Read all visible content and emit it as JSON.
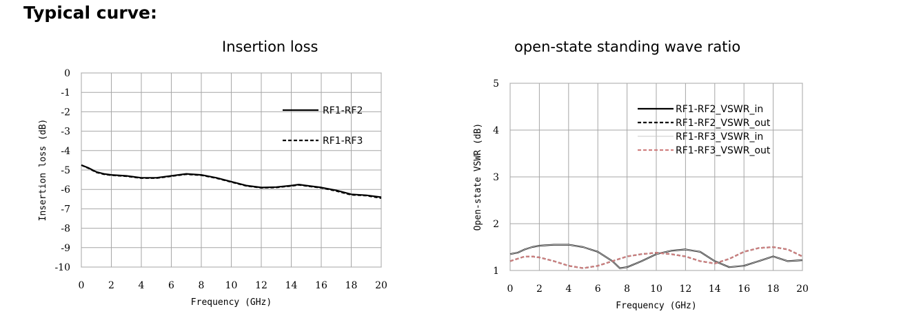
{
  "heading": "Typical curve:",
  "chart_data": [
    {
      "type": "line",
      "title": "Insertion loss",
      "xlabel": "Frequency (GHz)",
      "ylabel": "Insertion loss (dB)",
      "xlim": [
        0,
        20
      ],
      "ylim": [
        -10,
        0
      ],
      "x_ticks": [
        0,
        2,
        4,
        6,
        8,
        10,
        12,
        14,
        16,
        18,
        20
      ],
      "y_ticks": [
        0,
        -1,
        -2,
        -3,
        -4,
        -5,
        -6,
        -7,
        -8,
        -9,
        -10
      ],
      "grid": true,
      "legend": "top-right",
      "series": [
        {
          "name": "RF1-RF2",
          "style": "solid",
          "x": [
            0,
            0.5,
            1,
            1.5,
            2,
            3,
            4,
            5,
            6,
            7,
            8,
            9,
            10,
            11,
            12,
            13,
            14,
            14.5,
            15,
            16,
            17,
            18,
            19,
            20
          ],
          "y": [
            -4.75,
            -4.9,
            -5.1,
            -5.2,
            -5.25,
            -5.3,
            -5.4,
            -5.4,
            -5.3,
            -5.2,
            -5.25,
            -5.4,
            -5.6,
            -5.8,
            -5.9,
            -5.88,
            -5.8,
            -5.75,
            -5.8,
            -5.9,
            -6.05,
            -6.25,
            -6.3,
            -6.4
          ]
        },
        {
          "name": "RF1-RF3",
          "style": "dashed",
          "x": [
            0,
            0.5,
            1,
            1.5,
            2,
            3,
            4,
            5,
            6,
            7,
            8,
            9,
            10,
            11,
            12,
            13,
            14,
            14.5,
            15,
            16,
            17,
            18,
            19,
            20
          ],
          "y": [
            -4.75,
            -4.92,
            -5.12,
            -5.22,
            -5.27,
            -5.32,
            -5.42,
            -5.42,
            -5.32,
            -5.22,
            -5.27,
            -5.42,
            -5.62,
            -5.82,
            -5.92,
            -5.9,
            -5.82,
            -5.77,
            -5.82,
            -5.92,
            -6.08,
            -6.28,
            -6.32,
            -6.45
          ]
        }
      ]
    },
    {
      "type": "line",
      "title": "open-state standing wave ratio",
      "xlabel": "Frequency (GHz)",
      "ylabel": "Open-state VSWR (dB)",
      "xlim": [
        0,
        20
      ],
      "ylim": [
        1,
        5
      ],
      "x_ticks": [
        0,
        2,
        4,
        6,
        8,
        10,
        12,
        14,
        16,
        18,
        20
      ],
      "y_ticks": [
        1,
        2,
        3,
        4,
        5
      ],
      "grid": true,
      "legend": "top-right",
      "series": [
        {
          "name": "RF1-RF2_VSWR_in",
          "style": "solid",
          "color": "#000000",
          "x": [
            0,
            0.5,
            1,
            1.5,
            2,
            3,
            4,
            5,
            6,
            7,
            7.5,
            8,
            9,
            10,
            11,
            12,
            13,
            14,
            15,
            16,
            17,
            18,
            19,
            20
          ],
          "y": [
            1.35,
            1.38,
            1.45,
            1.5,
            1.53,
            1.55,
            1.55,
            1.5,
            1.4,
            1.2,
            1.05,
            1.07,
            1.2,
            1.35,
            1.42,
            1.45,
            1.4,
            1.2,
            1.07,
            1.1,
            1.2,
            1.3,
            1.2,
            1.22
          ]
        },
        {
          "name": "RF1-RF2_VSWR_out",
          "style": "dashed",
          "color": "#000000",
          "x": [
            0,
            0.5,
            1,
            1.5,
            2,
            3,
            4,
            5,
            6,
            7,
            8,
            9,
            10,
            11,
            12,
            13,
            14,
            15,
            16,
            17,
            18,
            19,
            20
          ],
          "y": [
            1.2,
            1.25,
            1.3,
            1.3,
            1.28,
            1.2,
            1.1,
            1.05,
            1.1,
            1.2,
            1.3,
            1.35,
            1.38,
            1.35,
            1.3,
            1.2,
            1.15,
            1.25,
            1.4,
            1.48,
            1.5,
            1.45,
            1.3
          ]
        },
        {
          "name": "RF1-RF3_VSWR_in",
          "style": "solid-thin",
          "color": "#c8c8c8",
          "x": [
            0,
            0.5,
            1,
            1.5,
            2,
            3,
            4,
            5,
            6,
            7,
            7.5,
            8,
            9,
            10,
            11,
            12,
            13,
            14,
            15,
            16,
            17,
            18,
            19,
            20
          ],
          "y": [
            1.35,
            1.38,
            1.45,
            1.5,
            1.53,
            1.55,
            1.55,
            1.5,
            1.4,
            1.2,
            1.05,
            1.07,
            1.2,
            1.35,
            1.42,
            1.45,
            1.4,
            1.2,
            1.07,
            1.1,
            1.2,
            1.3,
            1.2,
            1.22
          ]
        },
        {
          "name": "RF1-RF3_VSWR_out",
          "style": "dashed",
          "color": "#d08080",
          "x": [
            0,
            0.5,
            1,
            1.5,
            2,
            3,
            4,
            5,
            6,
            7,
            8,
            9,
            10,
            11,
            12,
            13,
            14,
            15,
            16,
            17,
            18,
            19,
            20
          ],
          "y": [
            1.2,
            1.25,
            1.3,
            1.3,
            1.28,
            1.2,
            1.1,
            1.05,
            1.1,
            1.2,
            1.3,
            1.35,
            1.38,
            1.35,
            1.3,
            1.2,
            1.15,
            1.25,
            1.4,
            1.48,
            1.5,
            1.45,
            1.3
          ]
        }
      ]
    }
  ]
}
